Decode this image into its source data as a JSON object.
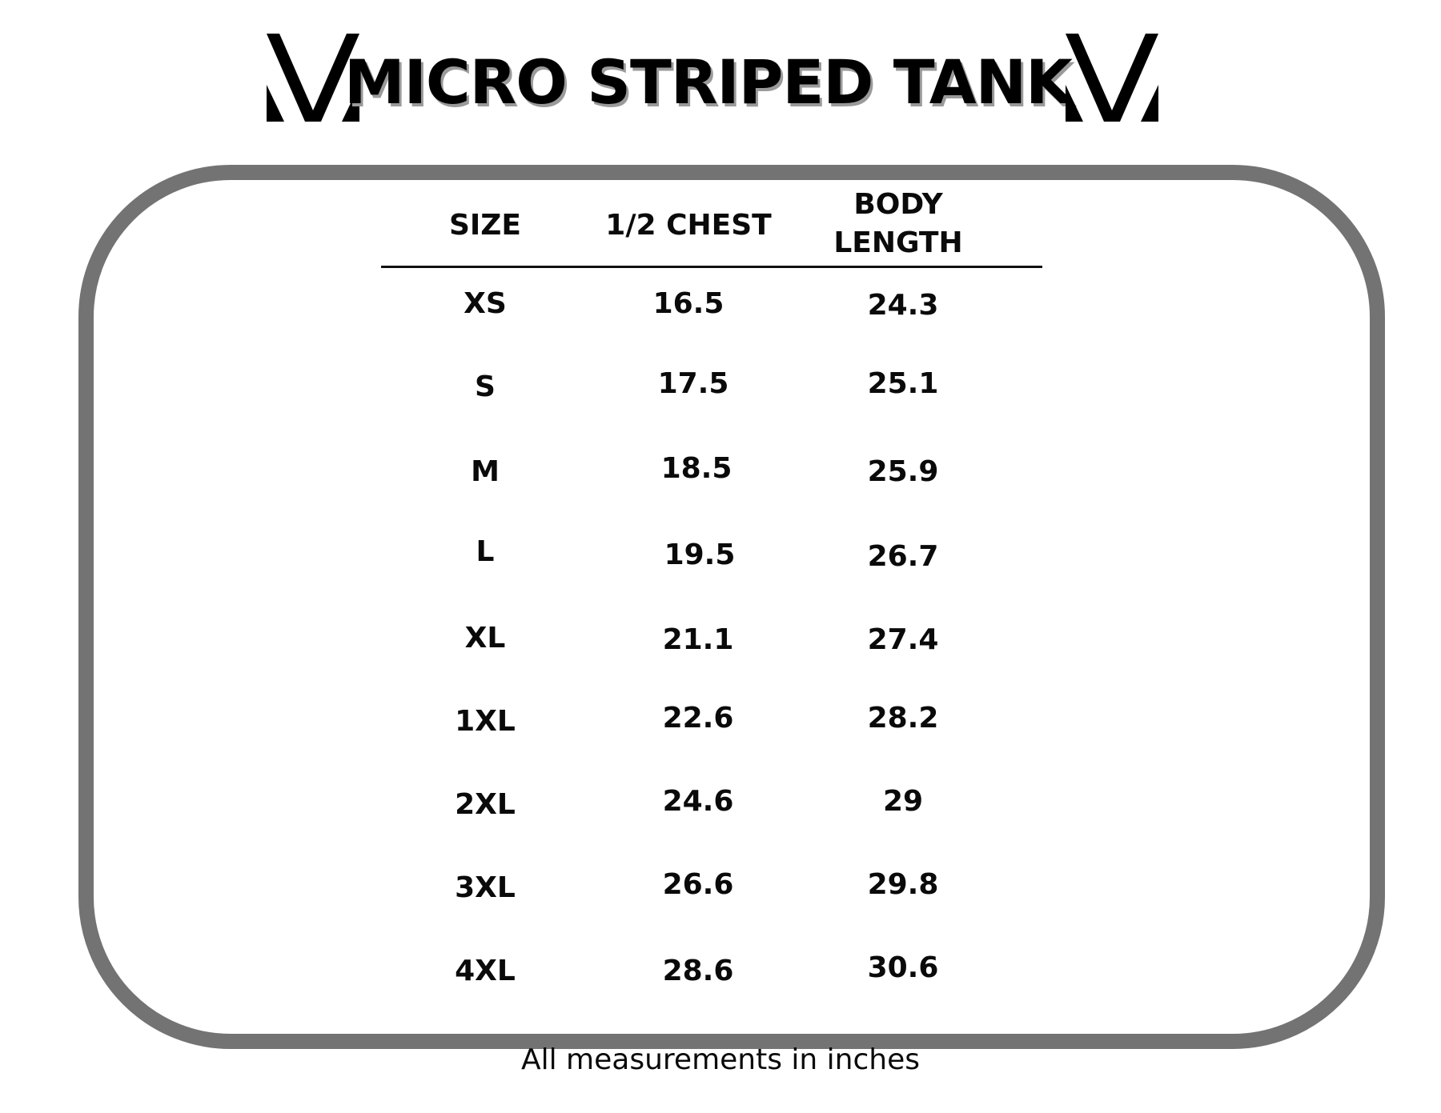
{
  "header": {
    "title": "MICRO STRIPED TANK",
    "logo_left": "brand-chevron-logo",
    "logo_right": "brand-chevron-logo"
  },
  "table": {
    "columns": [
      {
        "label_lines": [
          "SIZE"
        ]
      },
      {
        "label_lines": [
          "1/2 CHEST"
        ]
      },
      {
        "label_lines": [
          "BODY",
          "LENGTH"
        ]
      }
    ],
    "rows": [
      [
        "XS",
        "16.5",
        "24.3"
      ],
      [
        "S",
        "17.5",
        "25.1"
      ],
      [
        "M",
        "18.5",
        "25.9"
      ],
      [
        "L",
        "19.5",
        "26.7"
      ],
      [
        "XL",
        "21.1",
        "27.4"
      ],
      [
        "1XL",
        "22.6",
        "28.2"
      ],
      [
        "2XL",
        "24.6",
        "29"
      ],
      [
        "3XL",
        "26.6",
        "29.8"
      ],
      [
        "4XL",
        "28.6",
        "30.6"
      ]
    ]
  },
  "footer": {
    "note": "All measurements in inches"
  },
  "colors": {
    "frame": "#737373",
    "text": "#0a0a0a",
    "title_shadow": "#9a9a9a"
  }
}
